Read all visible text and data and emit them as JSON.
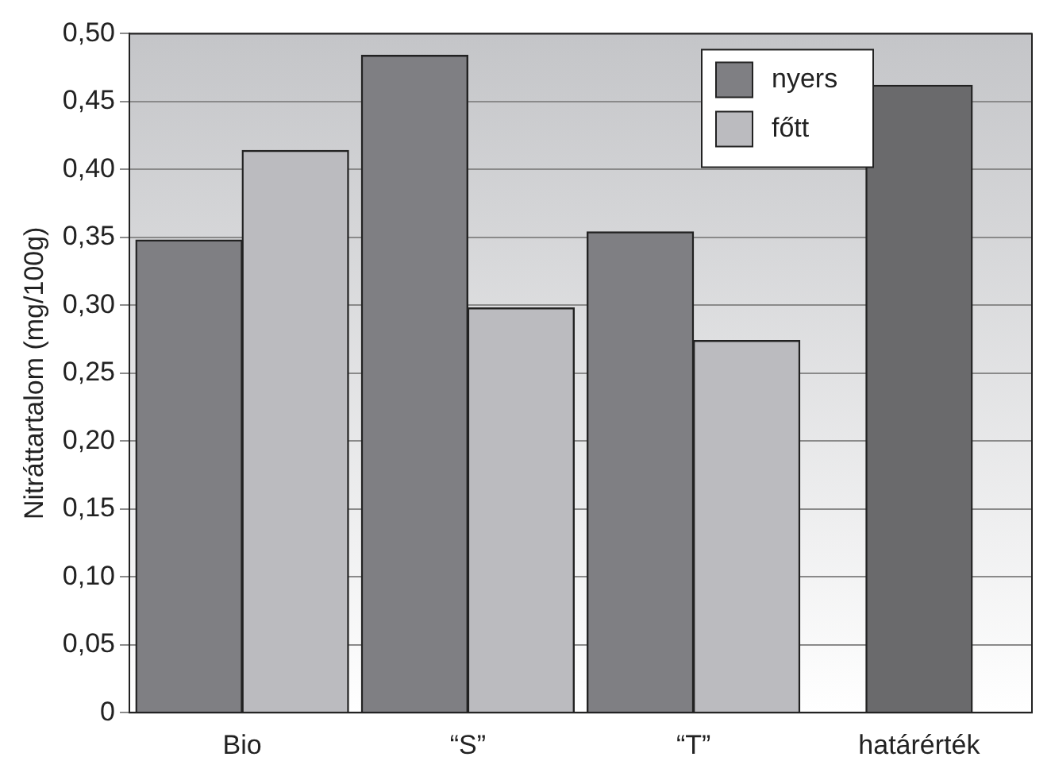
{
  "chart_data": {
    "type": "bar",
    "ylabel": "Nitráttartalom (mg/100g)",
    "categories": [
      "Bio",
      "“S”",
      "“T”",
      "határérték"
    ],
    "series": [
      {
        "name": "nyers",
        "color": "#7f7f83",
        "values": [
          0.348,
          0.484,
          0.354,
          null
        ]
      },
      {
        "name": "főtt",
        "color": "#bbbbbf",
        "values": [
          0.414,
          0.298,
          0.274,
          null
        ]
      },
      {
        "color": "#6a6a6c",
        "values": [
          null,
          null,
          null,
          0.462
        ]
      }
    ],
    "ylim": [
      0,
      0.5
    ],
    "yticks": [
      0,
      {
        "value": 0.05,
        "label": "0,05"
      },
      {
        "value": 0.1,
        "label": "0,10"
      },
      {
        "value": 0.15,
        "label": "0,15"
      },
      {
        "value": 0.2,
        "label": "0,20"
      },
      {
        "value": 0.25,
        "label": "0,25"
      },
      {
        "value": 0.3,
        "label": "0,30"
      },
      {
        "value": 0.35,
        "label": "0,35"
      },
      {
        "value": 0.4,
        "label": "0,40"
      },
      {
        "value": 0.45,
        "label": "0,45"
      },
      {
        "value": 0.5,
        "label": "0,50"
      }
    ],
    "grid": "y",
    "legend": "top right"
  }
}
